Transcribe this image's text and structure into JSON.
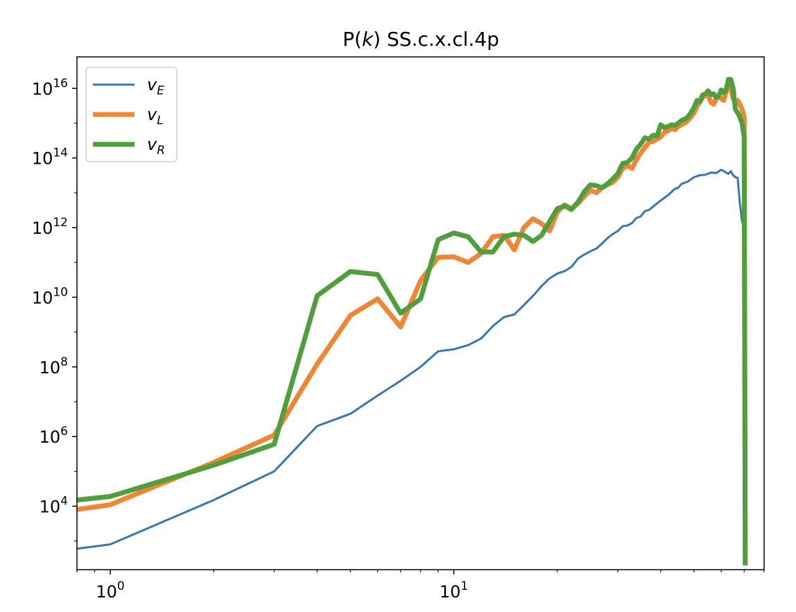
{
  "chart_data": {
    "type": "line",
    "title": "P(k) SS.c.x.cl.4p",
    "title_parts": {
      "prefix": "P(",
      "italic": "k",
      "suffix": ") SS.c.x.cl.4p"
    },
    "xlabel": "",
    "ylabel": "",
    "x_scale": "log",
    "y_scale": "log",
    "xlim": [
      0.8,
      80
    ],
    "ylim": [
      150,
      8e+16
    ],
    "x_ticks": [
      {
        "value": 1,
        "base": "10",
        "exp": "0"
      },
      {
        "value": 10,
        "base": "10",
        "exp": "1"
      }
    ],
    "y_ticks": [
      {
        "value": 10000,
        "base": "10",
        "exp": "4"
      },
      {
        "value": 1000000,
        "base": "10",
        "exp": "6"
      },
      {
        "value": 100000000,
        "base": "10",
        "exp": "8"
      },
      {
        "value": 10000000000,
        "base": "10",
        "exp": "10"
      },
      {
        "value": 1000000000000,
        "base": "10",
        "exp": "12"
      },
      {
        "value": 100000000000000,
        "base": "10",
        "exp": "14"
      },
      {
        "value": 10000000000000000,
        "base": "10",
        "exp": "16"
      }
    ],
    "grid": false,
    "legend_position": "top-left",
    "series": [
      {
        "name": "vE",
        "label_main": "v",
        "label_sub": "E",
        "color": "#3a75ad",
        "width": 3,
        "points": [
          [
            0.8,
            600
          ],
          [
            1,
            800
          ],
          [
            2,
            15000
          ],
          [
            3,
            100000
          ],
          [
            4,
            2000000
          ],
          [
            5,
            4500000
          ],
          [
            6,
            15000000
          ],
          [
            7,
            40000000
          ],
          [
            8,
            100000000
          ],
          [
            9,
            280000000
          ],
          [
            10,
            320000000
          ],
          [
            11,
            420000000
          ],
          [
            12,
            650000000
          ],
          [
            13,
            1500000000
          ],
          [
            14,
            2700000000
          ],
          [
            15,
            3200000000
          ],
          [
            16,
            6000000000
          ],
          [
            17,
            11000000000
          ],
          [
            18,
            21000000000
          ],
          [
            19,
            35000000000
          ],
          [
            20,
            48000000000
          ],
          [
            21,
            56000000000
          ],
          [
            22,
            75000000000
          ],
          [
            23,
            130000000000
          ],
          [
            24,
            170000000000
          ],
          [
            25,
            210000000000
          ],
          [
            26,
            250000000000
          ],
          [
            27,
            350000000000
          ],
          [
            28,
            500000000000
          ],
          [
            29,
            650000000000
          ],
          [
            30,
            800000000000
          ],
          [
            31,
            1100000000000
          ],
          [
            32,
            1150000000000
          ],
          [
            33,
            1350000000000
          ],
          [
            34,
            1900000000000
          ],
          [
            35,
            2100000000000
          ],
          [
            36,
            3000000000000
          ],
          [
            37,
            3200000000000
          ],
          [
            38,
            4000000000000
          ],
          [
            40,
            6000000000000
          ],
          [
            42,
            8500000000000
          ],
          [
            44,
            13000000000000
          ],
          [
            45,
            14000000000000
          ],
          [
            46,
            18000000000000
          ],
          [
            48,
            21000000000000
          ],
          [
            50,
            28000000000000
          ],
          [
            52,
            32000000000000
          ],
          [
            54,
            33000000000000
          ],
          [
            56,
            38000000000000
          ],
          [
            58,
            37000000000000
          ],
          [
            60,
            46000000000000
          ],
          [
            61,
            42000000000000
          ],
          [
            62,
            38000000000000
          ],
          [
            63,
            35000000000000
          ],
          [
            64,
            42000000000000
          ],
          [
            65,
            32000000000000
          ],
          [
            66,
            28000000000000
          ],
          [
            67,
            27000000000000
          ],
          [
            68,
            5000000000000
          ],
          [
            69,
            1500000000000
          ],
          [
            70,
            1000000000000
          ]
        ]
      },
      {
        "name": "vL",
        "label_main": "v",
        "label_sub": "L",
        "color": "#ef8636",
        "width": 7,
        "points": [
          [
            0.8,
            8000
          ],
          [
            1,
            11000
          ],
          [
            2,
            180000
          ],
          [
            3,
            1100000
          ],
          [
            4,
            120000000
          ],
          [
            5,
            3000000000
          ],
          [
            6,
            9000000000
          ],
          [
            7,
            1400000000
          ],
          [
            8,
            30000000000
          ],
          [
            9,
            140000000000
          ],
          [
            10,
            145000000000
          ],
          [
            11,
            100000000000
          ],
          [
            12,
            180000000000
          ],
          [
            13,
            550000000000
          ],
          [
            14,
            600000000000
          ],
          [
            15,
            230000000000
          ],
          [
            16,
            1000000000000
          ],
          [
            17,
            1800000000000
          ],
          [
            18,
            1300000000000
          ],
          [
            19,
            800000000000
          ],
          [
            20,
            2800000000000
          ],
          [
            21,
            4500000000000
          ],
          [
            22,
            3500000000000
          ],
          [
            23,
            5000000000000
          ],
          [
            24,
            8000000000000
          ],
          [
            25,
            12000000000000
          ],
          [
            26,
            10000000000000
          ],
          [
            27,
            14000000000000
          ],
          [
            28,
            17000000000000
          ],
          [
            29,
            20000000000000
          ],
          [
            30,
            28000000000000
          ],
          [
            31,
            50000000000000
          ],
          [
            32,
            60000000000000
          ],
          [
            33,
            50000000000000
          ],
          [
            34,
            90000000000000
          ],
          [
            35,
            140000000000000
          ],
          [
            36,
            200000000000000
          ],
          [
            37,
            280000000000000
          ],
          [
            38,
            300000000000000
          ],
          [
            39,
            350000000000000
          ],
          [
            40,
            400000000000000
          ],
          [
            41,
            550000000000000
          ],
          [
            42,
            600000000000000
          ],
          [
            43,
            700000000000000
          ],
          [
            44,
            650000000000000
          ],
          [
            45,
            800000000000000
          ],
          [
            46,
            900000000000000
          ],
          [
            47,
            1000000000000000
          ],
          [
            48,
            1200000000000000
          ],
          [
            49,
            1500000000000000
          ],
          [
            50,
            2000000000000000
          ],
          [
            51,
            3000000000000000
          ],
          [
            52,
            4000000000000000
          ],
          [
            53,
            5500000000000000
          ],
          [
            54,
            6500000000000000
          ],
          [
            55,
            6000000000000000
          ],
          [
            56,
            4000000000000000
          ],
          [
            57,
            3500000000000000
          ],
          [
            58,
            5000000000000000
          ],
          [
            59,
            6000000000000000
          ],
          [
            60,
            5000000000000000
          ],
          [
            61,
            4500000000000000
          ],
          [
            62,
            8000000000000000
          ],
          [
            63,
            12000000000000000
          ],
          [
            64,
            10000000000000000
          ],
          [
            65,
            5000000000000000
          ],
          [
            66,
            4000000000000000
          ],
          [
            67,
            4500000000000000
          ],
          [
            68,
            3500000000000000
          ],
          [
            69,
            2500000000000000
          ],
          [
            70,
            1500000000000000
          ],
          [
            70.5,
            200
          ]
        ]
      },
      {
        "name": "vR",
        "label_main": "v",
        "label_sub": "R",
        "color": "#519e3e",
        "width": 7,
        "points": [
          [
            0.8,
            15000
          ],
          [
            1,
            19000
          ],
          [
            2,
            150000
          ],
          [
            3,
            600000
          ],
          [
            4,
            11000000000
          ],
          [
            5,
            55000000000
          ],
          [
            6,
            45000000000
          ],
          [
            7,
            3500000000
          ],
          [
            8,
            9000000000
          ],
          [
            9,
            450000000000
          ],
          [
            10,
            700000000000
          ],
          [
            11,
            550000000000
          ],
          [
            12,
            200000000000
          ],
          [
            13,
            200000000000
          ],
          [
            14,
            550000000000
          ],
          [
            15,
            650000000000
          ],
          [
            16,
            600000000000
          ],
          [
            17,
            400000000000
          ],
          [
            18,
            600000000000
          ],
          [
            19,
            1500000000000
          ],
          [
            20,
            3500000000000
          ],
          [
            21,
            4200000000000
          ],
          [
            22,
            3300000000000
          ],
          [
            23,
            5500000000000
          ],
          [
            24,
            11000000000000
          ],
          [
            25,
            17000000000000
          ],
          [
            26,
            16000000000000
          ],
          [
            27,
            14000000000000
          ],
          [
            28,
            18000000000000
          ],
          [
            29,
            25000000000000
          ],
          [
            30,
            35000000000000
          ],
          [
            31,
            70000000000000
          ],
          [
            32,
            75000000000000
          ],
          [
            33,
            100000000000000
          ],
          [
            34,
            180000000000000
          ],
          [
            35,
            250000000000000
          ],
          [
            36,
            380000000000000
          ],
          [
            37,
            350000000000000
          ],
          [
            38,
            450000000000000
          ],
          [
            39,
            420000000000000
          ],
          [
            40,
            900000000000000
          ],
          [
            41,
            750000000000000
          ],
          [
            42,
            800000000000000
          ],
          [
            43,
            900000000000000
          ],
          [
            44,
            850000000000000
          ],
          [
            45,
            1000000000000000
          ],
          [
            46,
            1200000000000000
          ],
          [
            47,
            1300000000000000
          ],
          [
            48,
            1500000000000000
          ],
          [
            49,
            2000000000000000
          ],
          [
            50,
            2800000000000000
          ],
          [
            51,
            4500000000000000
          ],
          [
            52,
            4200000000000000
          ],
          [
            53,
            6500000000000000
          ],
          [
            54,
            7000000000000000
          ],
          [
            55,
            8500000000000000
          ],
          [
            56,
            6500000000000000
          ],
          [
            57,
            7000000000000000
          ],
          [
            58,
            5500000000000000
          ],
          [
            59,
            6000000000000000
          ],
          [
            60,
            9000000000000000
          ],
          [
            61,
            7500000000000000
          ],
          [
            62,
            9000000000000000
          ],
          [
            63,
            18000000000000000
          ],
          [
            64,
            18000000000000000
          ],
          [
            65,
            10000000000000000
          ],
          [
            66,
            2500000000000000
          ],
          [
            67,
            2000000000000000
          ],
          [
            68,
            1500000000000000
          ],
          [
            69,
            1000000000000000
          ],
          [
            70,
            400000000000000
          ],
          [
            70.5,
            200
          ]
        ]
      }
    ]
  }
}
